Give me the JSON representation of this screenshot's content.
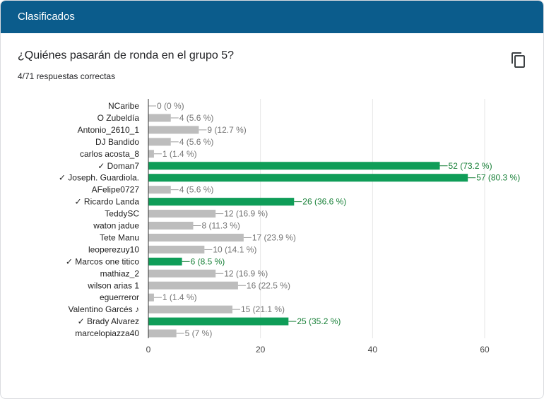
{
  "header": {
    "title": "Clasificados"
  },
  "question": {
    "title": "¿Quiénes pasarán de ronda en el grupo 5?",
    "score": "4/71 respuestas correctas",
    "copy_icon": "copy-icon"
  },
  "colors": {
    "header_bg": "#0b5c8c",
    "bar": "#bdbdbd",
    "bar_correct": "#0f9d58",
    "label": "#757575",
    "label_correct": "#188038",
    "category_text": "#222222",
    "gridline": "#e6e6e6",
    "axis": "#333333"
  },
  "chart_data": {
    "type": "bar",
    "orientation": "horizontal",
    "categories": [
      "NCaribe",
      "O Zubeldía",
      "Antonio_2610_1",
      "DJ Bandido",
      "carlos acosta_8",
      "✓ Doman7",
      "✓ Joseph. Guardiola.",
      "AFelipe0727",
      "✓ Ricardo Landa",
      "TeddySC",
      "waton jadue",
      "Tete Manu",
      "leoperezuy10",
      "✓ Marcos one titico",
      "mathiaz_2",
      "wilson arias 1",
      "eguerreror",
      "Valentino Garcés ♪",
      "✓ Brady Alvarez",
      "marcelopiazza40"
    ],
    "values": [
      0,
      4,
      9,
      4,
      1,
      52,
      57,
      4,
      26,
      12,
      8,
      17,
      10,
      6,
      12,
      16,
      1,
      15,
      25,
      5
    ],
    "value_labels": [
      "0 (0 %)",
      "4 (5.6 %)",
      "9 (12.7 %)",
      "4 (5.6 %)",
      "1 (1.4 %)",
      "52 (73.2 %)",
      "57 (80.3 %)",
      "4 (5.6 %)",
      "26 (36.6 %)",
      "12 (16.9 %)",
      "8 (11.3 %)",
      "17 (23.9 %)",
      "10 (14.1 %)",
      "6 (8.5 %)",
      "12 (16.9 %)",
      "16 (22.5 %)",
      "1 (1.4 %)",
      "15 (21.1 %)",
      "25 (35.2 %)",
      "5 (7 %)"
    ],
    "correct": [
      false,
      false,
      false,
      false,
      false,
      true,
      true,
      false,
      true,
      false,
      false,
      false,
      false,
      true,
      false,
      false,
      false,
      false,
      true,
      false
    ],
    "xlim": [
      0,
      60
    ],
    "xticks": [
      0,
      20,
      40,
      60
    ],
    "grid": true,
    "legend": "none"
  }
}
